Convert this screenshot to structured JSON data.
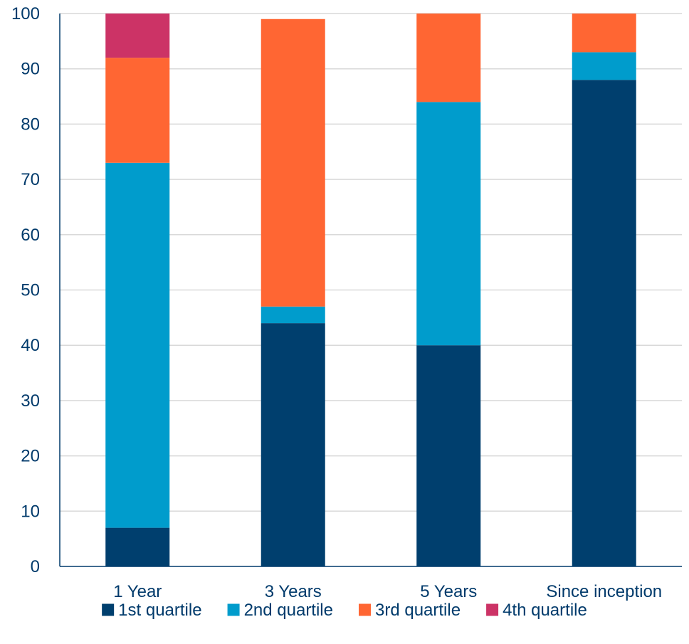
{
  "chart_data": {
    "type": "bar",
    "stacked": true,
    "title": "",
    "xlabel": "",
    "ylabel": "",
    "categories": [
      "1 Year",
      "3 Years",
      "5 Years",
      "Since inception"
    ],
    "series": [
      {
        "name": "1st quartile",
        "color": "#003f6e",
        "values": [
          7,
          44,
          40,
          88
        ]
      },
      {
        "name": "2nd quartile",
        "color": "#009ccc",
        "values": [
          66,
          3,
          44,
          5
        ]
      },
      {
        "name": "3rd quartile",
        "color": "#ff6633",
        "values": [
          19,
          52,
          16,
          7
        ]
      },
      {
        "name": "4th quartile",
        "color": "#cc3366",
        "values": [
          8,
          0,
          0,
          0
        ]
      }
    ],
    "ylim": [
      0,
      100
    ],
    "yticks": [
      0,
      10,
      20,
      30,
      40,
      50,
      60,
      70,
      80,
      90,
      100
    ],
    "grid": true,
    "legend": "bottom"
  }
}
